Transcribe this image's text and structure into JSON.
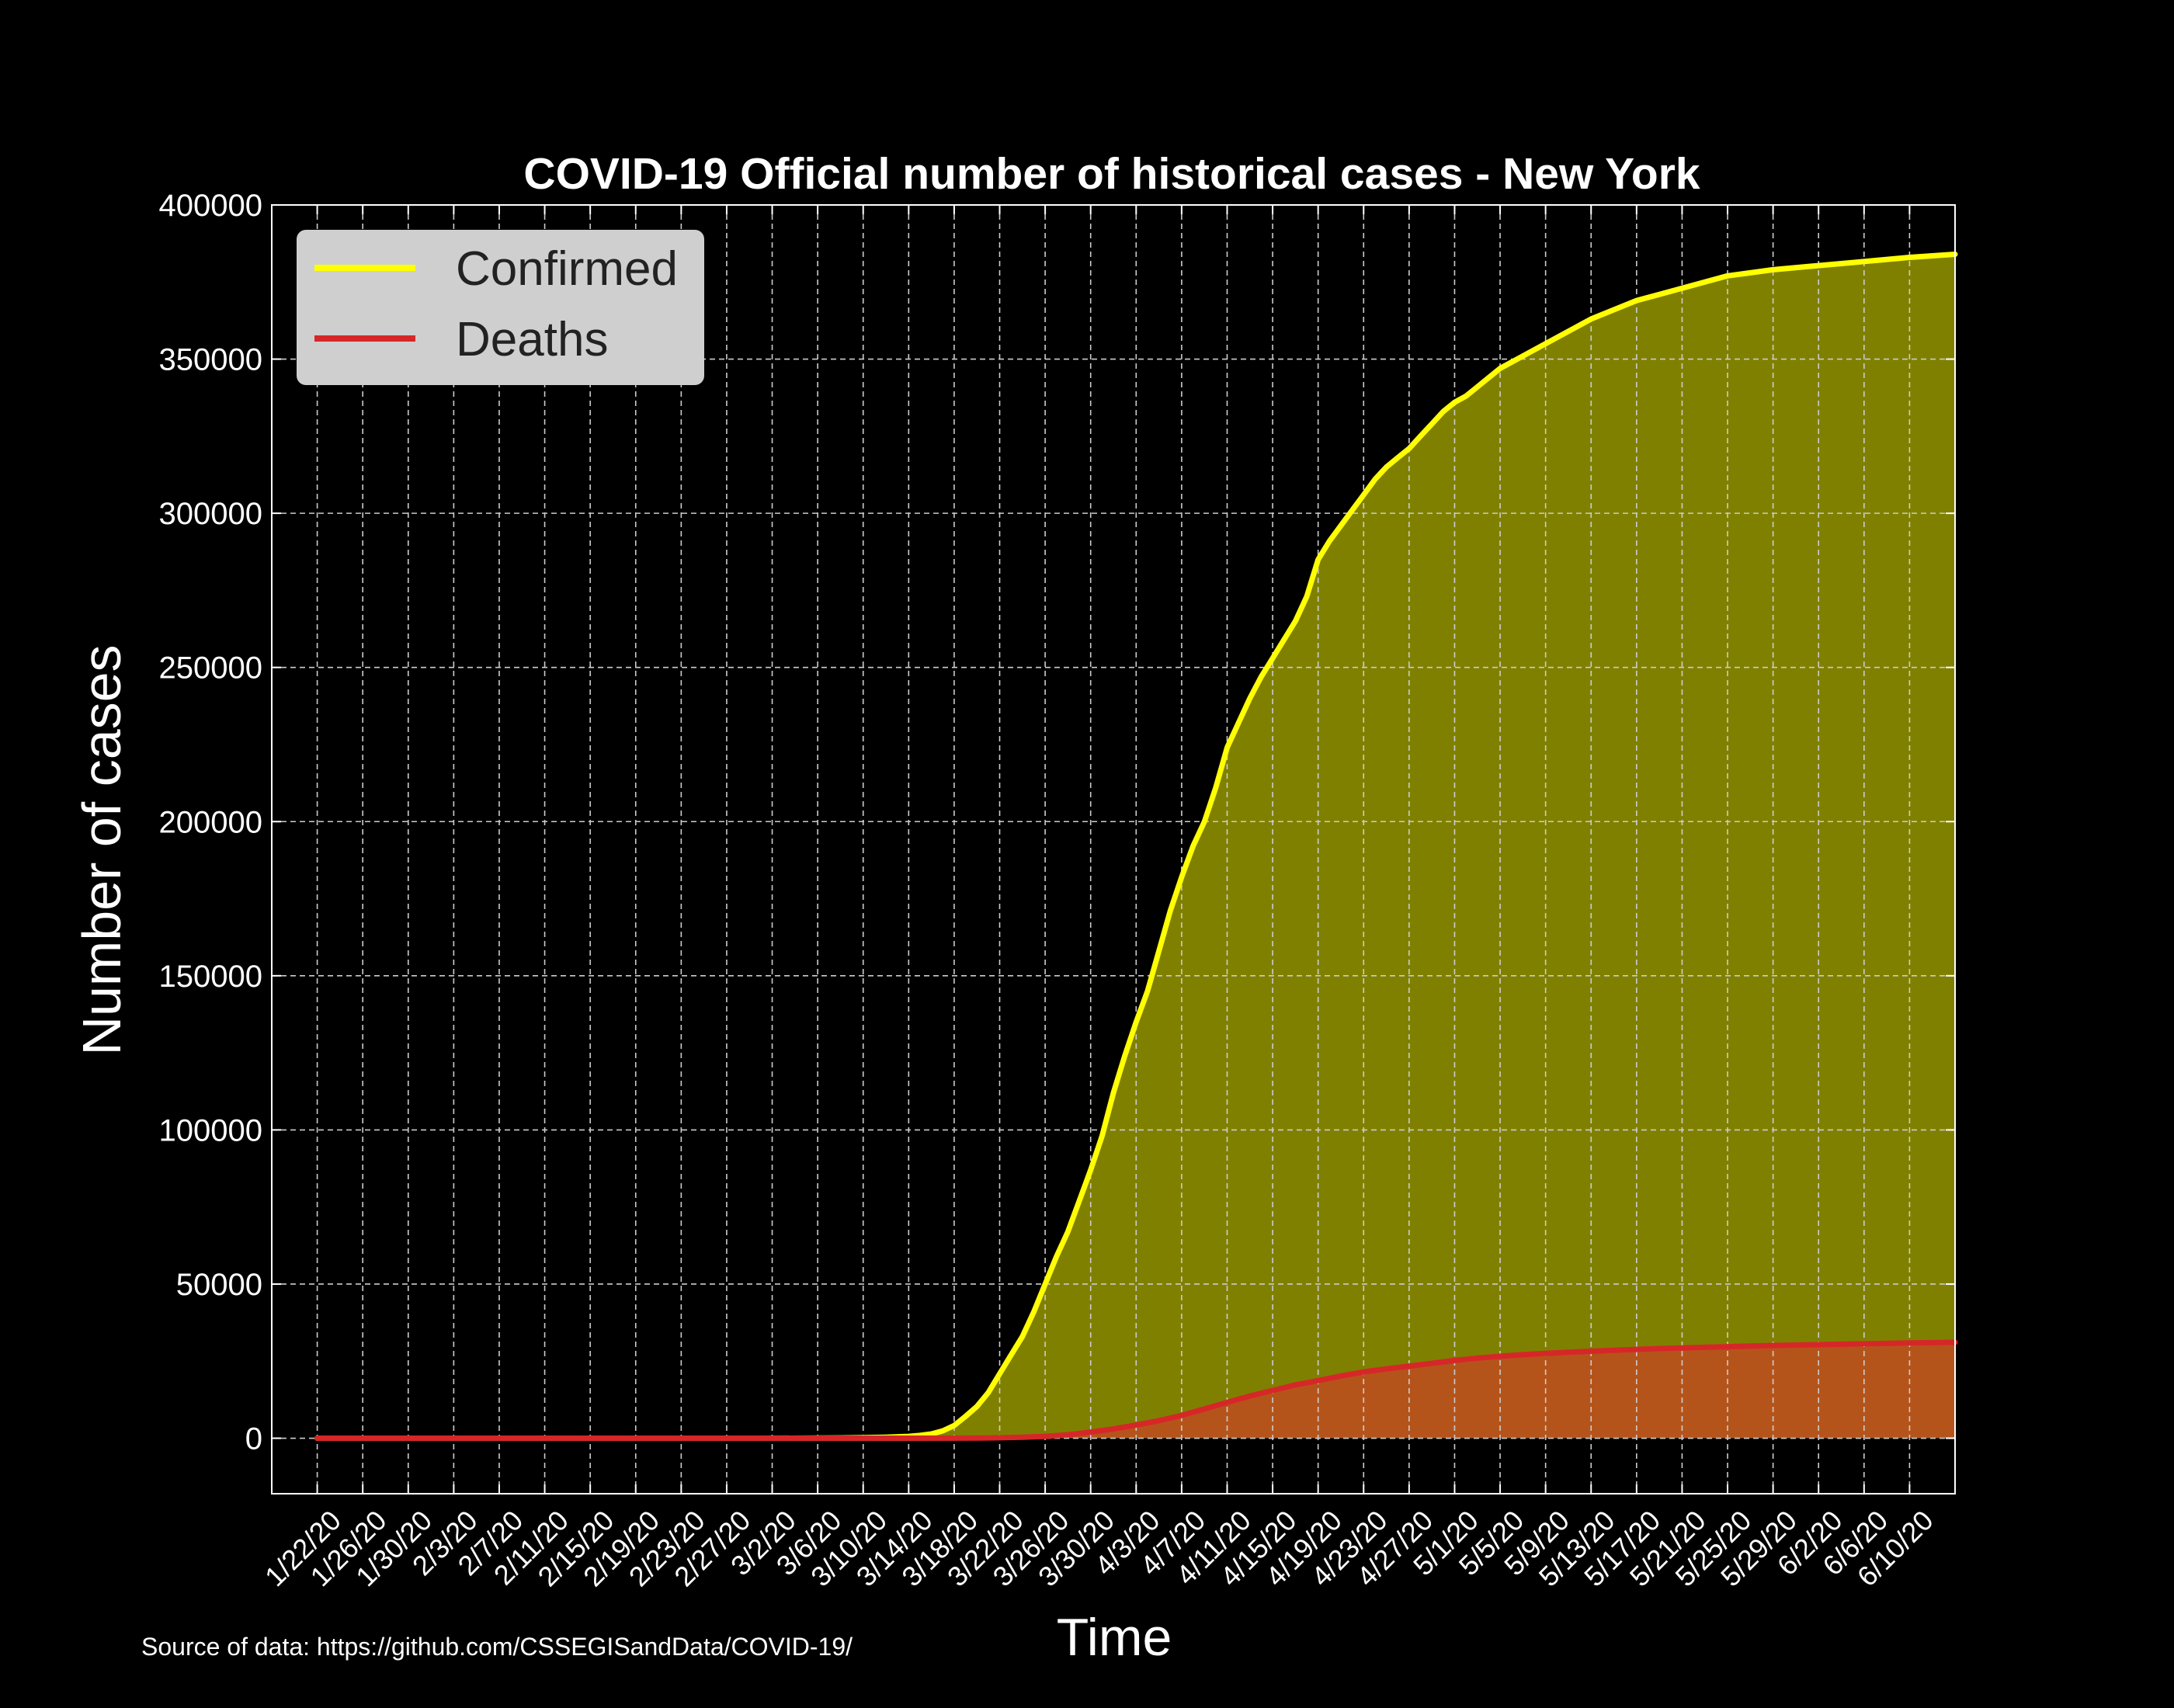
{
  "chart_data": {
    "type": "area",
    "title": "COVID-19 Official number of historical cases - New York",
    "xlabel": "Time",
    "ylabel": "Number of cases",
    "ylim": [
      -18000,
      400000
    ],
    "yticks": [
      0,
      50000,
      100000,
      150000,
      200000,
      250000,
      300000,
      350000,
      400000
    ],
    "xticks": [
      "1/22/20",
      "1/26/20",
      "1/30/20",
      "2/3/20",
      "2/7/20",
      "2/11/20",
      "2/15/20",
      "2/19/20",
      "2/23/20",
      "2/27/20",
      "3/2/20",
      "3/6/20",
      "3/10/20",
      "3/14/20",
      "3/18/20",
      "3/22/20",
      "3/26/20",
      "3/30/20",
      "4/3/20",
      "4/7/20",
      "4/11/20",
      "4/15/20",
      "4/19/20",
      "4/23/20",
      "4/27/20",
      "5/1/20",
      "5/5/20",
      "5/9/20",
      "5/13/20",
      "5/17/20",
      "5/21/20",
      "5/25/20",
      "5/29/20",
      "6/2/20",
      "6/6/20",
      "6/10/20"
    ],
    "x_range": [
      "1/18/20",
      "6/14/20"
    ],
    "grid": true,
    "legend_placement": "top-left",
    "series": [
      {
        "name": "Confirmed",
        "color": "#ffff00",
        "fill": "#808000",
        "points": [
          [
            "1/22/20",
            0
          ],
          [
            "3/1/20",
            0
          ],
          [
            "3/5/20",
            20
          ],
          [
            "3/8/20",
            100
          ],
          [
            "3/10/20",
            170
          ],
          [
            "3/12/20",
            330
          ],
          [
            "3/14/20",
            600
          ],
          [
            "3/15/20",
            900
          ],
          [
            "3/16/20",
            1400
          ],
          [
            "3/17/20",
            2400
          ],
          [
            "3/18/20",
            4100
          ],
          [
            "3/19/20",
            7100
          ],
          [
            "3/20/20",
            10300
          ],
          [
            "3/21/20",
            14800
          ],
          [
            "3/22/20",
            20900
          ],
          [
            "3/23/20",
            27000
          ],
          [
            "3/24/20",
            33000
          ],
          [
            "3/25/20",
            41000
          ],
          [
            "3/26/20",
            50000
          ],
          [
            "3/27/20",
            59000
          ],
          [
            "3/28/20",
            67000
          ],
          [
            "3/29/20",
            77000
          ],
          [
            "3/30/20",
            87000
          ],
          [
            "3/31/20",
            98000
          ],
          [
            "4/1/20",
            112000
          ],
          [
            "4/2/20",
            124000
          ],
          [
            "4/3/20",
            135000
          ],
          [
            "4/4/20",
            145000
          ],
          [
            "4/5/20",
            158000
          ],
          [
            "4/6/20",
            171000
          ],
          [
            "4/7/20",
            182000
          ],
          [
            "4/8/20",
            192000
          ],
          [
            "4/9/20",
            200000
          ],
          [
            "4/10/20",
            211000
          ],
          [
            "4/11/20",
            224000
          ],
          [
            "4/12/20",
            232000
          ],
          [
            "4/13/20",
            240000
          ],
          [
            "4/14/20",
            247000
          ],
          [
            "4/15/20",
            253000
          ],
          [
            "4/16/20",
            259000
          ],
          [
            "4/17/20",
            265000
          ],
          [
            "4/18/20",
            273000
          ],
          [
            "4/19/20",
            285000
          ],
          [
            "4/20/20",
            291000
          ],
          [
            "4/21/20",
            296000
          ],
          [
            "4/22/20",
            301000
          ],
          [
            "4/23/20",
            306000
          ],
          [
            "4/24/20",
            311000
          ],
          [
            "4/25/20",
            315000
          ],
          [
            "4/26/20",
            318000
          ],
          [
            "4/27/20",
            321000
          ],
          [
            "4/28/20",
            325000
          ],
          [
            "4/29/20",
            329000
          ],
          [
            "4/30/20",
            333000
          ],
          [
            "5/1/20",
            336000
          ],
          [
            "5/2/20",
            338000
          ],
          [
            "5/3/20",
            341000
          ],
          [
            "5/5/20",
            347000
          ],
          [
            "5/7/20",
            351000
          ],
          [
            "5/9/20",
            355000
          ],
          [
            "5/11/20",
            359000
          ],
          [
            "5/13/20",
            363000
          ],
          [
            "5/15/20",
            366000
          ],
          [
            "5/17/20",
            369000
          ],
          [
            "5/19/20",
            371000
          ],
          [
            "5/21/20",
            373000
          ],
          [
            "5/23/20",
            375000
          ],
          [
            "5/25/20",
            377000
          ],
          [
            "5/27/20",
            378000
          ],
          [
            "5/29/20",
            379000
          ],
          [
            "6/1/20",
            380000
          ],
          [
            "6/4/20",
            381000
          ],
          [
            "6/7/20",
            382000
          ],
          [
            "6/10/20",
            383000
          ],
          [
            "6/14/20",
            384000
          ]
        ]
      },
      {
        "name": "Deaths",
        "color": "#d62728",
        "fill": "#b5541a",
        "points": [
          [
            "1/22/20",
            0
          ],
          [
            "3/14/20",
            0
          ],
          [
            "3/18/20",
            20
          ],
          [
            "3/20/20",
            60
          ],
          [
            "3/22/20",
            150
          ],
          [
            "3/24/20",
            300
          ],
          [
            "3/26/20",
            600
          ],
          [
            "3/28/20",
            1100
          ],
          [
            "3/30/20",
            2000
          ],
          [
            "4/1/20",
            3000
          ],
          [
            "4/3/20",
            4300
          ],
          [
            "4/5/20",
            5700
          ],
          [
            "4/7/20",
            7400
          ],
          [
            "4/9/20",
            9500
          ],
          [
            "4/11/20",
            11600
          ],
          [
            "4/13/20",
            13700
          ],
          [
            "4/15/20",
            15500
          ],
          [
            "4/17/20",
            17300
          ],
          [
            "4/19/20",
            18700
          ],
          [
            "4/21/20",
            20200
          ],
          [
            "4/23/20",
            21500
          ],
          [
            "4/25/20",
            22500
          ],
          [
            "4/27/20",
            23400
          ],
          [
            "4/29/20",
            24300
          ],
          [
            "5/1/20",
            25200
          ],
          [
            "5/3/20",
            26000
          ],
          [
            "5/5/20",
            26600
          ],
          [
            "5/7/20",
            27100
          ],
          [
            "5/9/20",
            27500
          ],
          [
            "5/11/20",
            27900
          ],
          [
            "5/13/20",
            28200
          ],
          [
            "5/15/20",
            28500
          ],
          [
            "5/17/20",
            28800
          ],
          [
            "5/19/20",
            29100
          ],
          [
            "5/21/20",
            29300
          ],
          [
            "5/23/20",
            29500
          ],
          [
            "5/25/20",
            29700
          ],
          [
            "5/27/20",
            29900
          ],
          [
            "5/29/20",
            30100
          ],
          [
            "6/1/20",
            30300
          ],
          [
            "6/4/20",
            30500
          ],
          [
            "6/7/20",
            30700
          ],
          [
            "6/10/20",
            30900
          ],
          [
            "6/14/20",
            31100
          ]
        ]
      }
    ],
    "source_note": "Source of data: https://github.com/CSSEGISandData/COVID-19/"
  }
}
